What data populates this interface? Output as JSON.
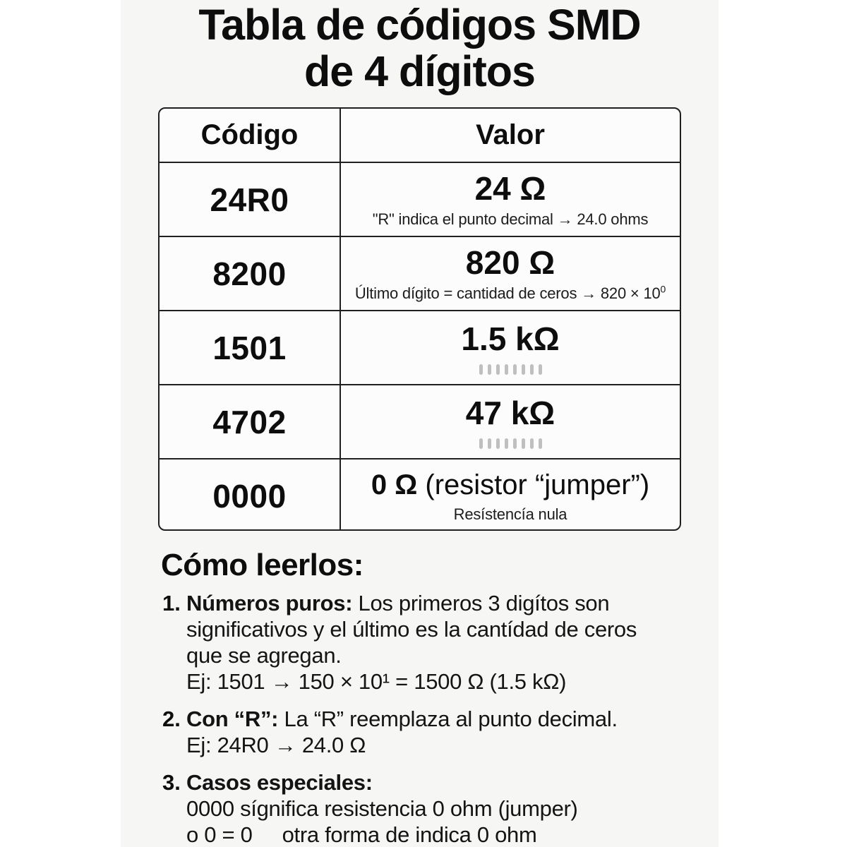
{
  "title": {
    "line1": "Tabla de códigos SMD",
    "line2": "de 4 dígitos"
  },
  "table": {
    "headers": {
      "code": "Código",
      "value": "Valor"
    },
    "rows": [
      {
        "code": "24R0",
        "value": "24 Ω",
        "note": "\"R\" indica el punto decimal → 24.0 ohms"
      },
      {
        "code": "8200",
        "value": "820 Ω",
        "note_base": "Último dígito = cantidad de ceros → 820 × 10",
        "note_sup": "0"
      },
      {
        "code": "1501",
        "value": "1.5 kΩ"
      },
      {
        "code": "4702",
        "value": "47 kΩ"
      },
      {
        "code": "0000",
        "value_bold": "0 Ω",
        "value_rest": " (resistor “jumper”)",
        "note": "Resístencía nula"
      }
    ]
  },
  "how_to": {
    "heading": "Cómo leerlos:",
    "items": [
      {
        "marker": "1.",
        "lead": "Números puros:",
        "line1_rest": " Los primeros 3 digítos son",
        "line2": "significativos y el último es la cantídad de ceros",
        "line3": "que se agregan.",
        "line4": "Ej: 1501 → 150 × 10¹ = 1500 Ω (1.5 kΩ)"
      },
      {
        "marker": "2.",
        "lead": "Con “R”:",
        "line1_rest": " La “R” reemplaza al punto decimal.",
        "line2": "Ej: 24R0 → 24.0 Ω"
      },
      {
        "marker": "3.",
        "lead": "Casos especiales:",
        "line2": "0000 sígnifica resistencia 0 ohm (jumper)",
        "line3a": "o 0 = 0",
        "line3b": "otra forma de indica 0 ohm"
      }
    ]
  },
  "colors": {
    "panel_bg": "#f6f6f5",
    "table_bg": "#fcfcfc",
    "border": "#1f1f1f",
    "text": "#0f0f0f",
    "faded_dots": "#bfbfbf"
  }
}
